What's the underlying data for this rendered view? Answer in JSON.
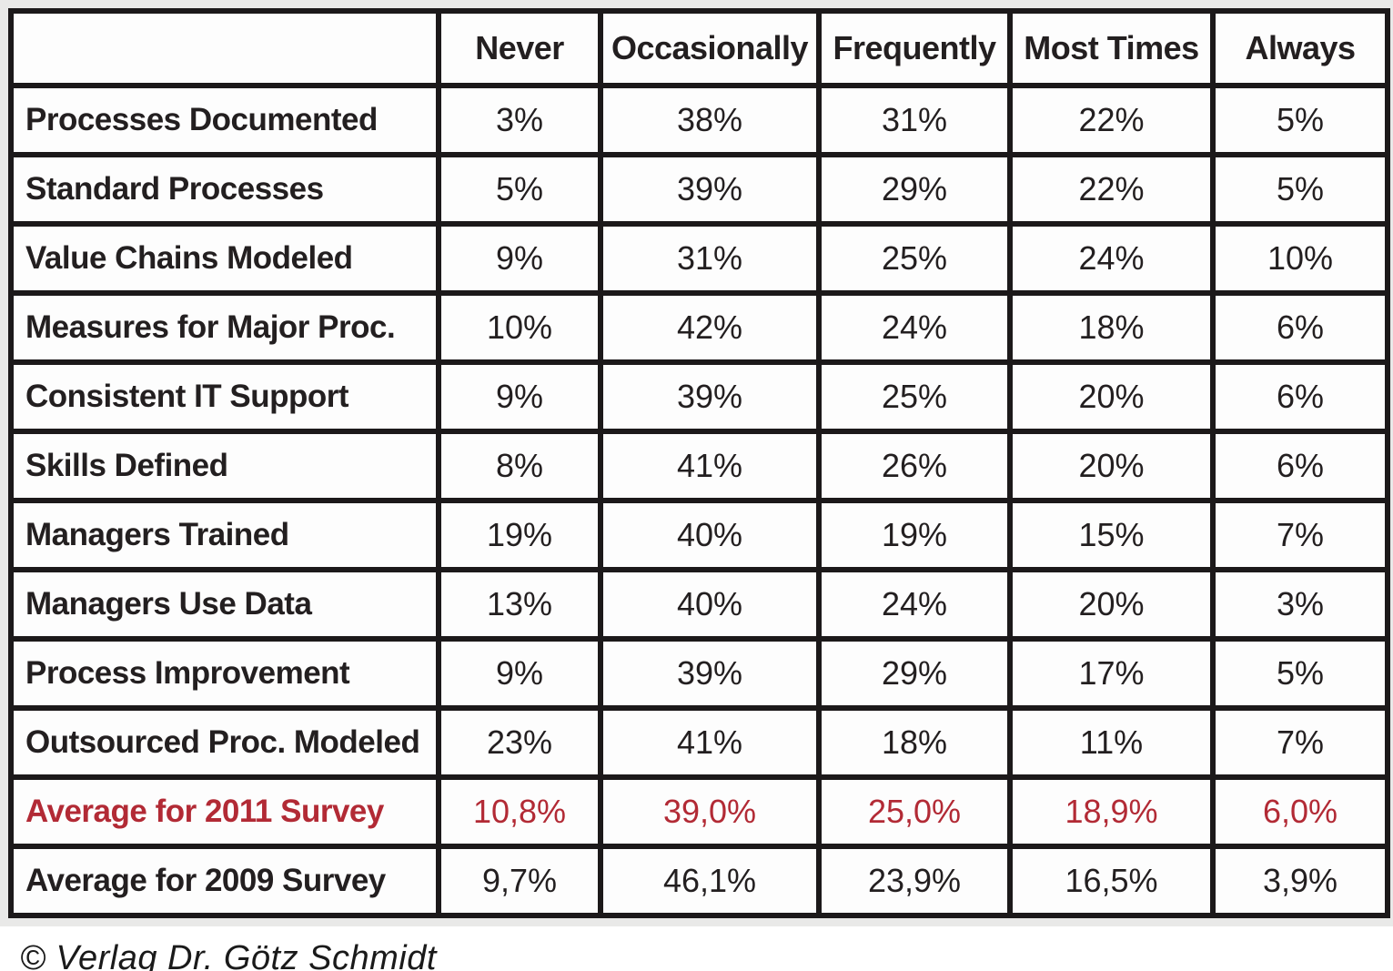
{
  "colors": {
    "highlight_red": "#b22a35",
    "border_black": "#1c191a",
    "cell_white": "#fdfdfd",
    "frame_gray": "#e9e9e8"
  },
  "chart_data": {
    "type": "table",
    "columns": [
      "",
      "Never",
      "Occasionally",
      "Frequently",
      "Most Times",
      "Always"
    ],
    "rows": [
      {
        "label": "Processes Documented",
        "values": [
          "3%",
          "38%",
          "31%",
          "22%",
          "5%"
        ],
        "highlight": false
      },
      {
        "label": "Standard Processes",
        "values": [
          "5%",
          "39%",
          "29%",
          "22%",
          "5%"
        ],
        "highlight": false
      },
      {
        "label": "Value Chains Modeled",
        "values": [
          "9%",
          "31%",
          "25%",
          "24%",
          "10%"
        ],
        "highlight": false
      },
      {
        "label": "Measures for Major Proc.",
        "values": [
          "10%",
          "42%",
          "24%",
          "18%",
          "6%"
        ],
        "highlight": false
      },
      {
        "label": "Consistent IT Support",
        "values": [
          "9%",
          "39%",
          "25%",
          "20%",
          "6%"
        ],
        "highlight": false
      },
      {
        "label": "Skills Defined",
        "values": [
          "8%",
          "41%",
          "26%",
          "20%",
          "6%"
        ],
        "highlight": false
      },
      {
        "label": "Managers Trained",
        "values": [
          "19%",
          "40%",
          "19%",
          "15%",
          "7%"
        ],
        "highlight": false
      },
      {
        "label": "Managers Use Data",
        "values": [
          "13%",
          "40%",
          "24%",
          "20%",
          "3%"
        ],
        "highlight": false
      },
      {
        "label": "Process Improvement",
        "values": [
          "9%",
          "39%",
          "29%",
          "17%",
          "5%"
        ],
        "highlight": false
      },
      {
        "label": "Outsourced Proc. Modeled",
        "values": [
          "23%",
          "41%",
          "18%",
          "11%",
          "7%"
        ],
        "highlight": false
      },
      {
        "label": "Average for 2011 Survey",
        "values": [
          "10,8%",
          "39,0%",
          "25,0%",
          "18,9%",
          "6,0%"
        ],
        "highlight": true
      },
      {
        "label": "Average for 2009 Survey",
        "values": [
          "9,7%",
          "46,1%",
          "23,9%",
          "16,5%",
          "3,9%"
        ],
        "highlight": false
      }
    ]
  },
  "footer": {
    "copyright": "© Verlag Dr. Götz Schmidt"
  }
}
